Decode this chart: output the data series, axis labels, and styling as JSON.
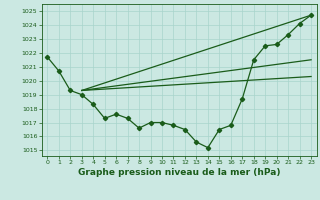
{
  "bg_color": "#cbe8e2",
  "line_color": "#1a5c1a",
  "grid_color": "#a8d4cc",
  "xlabel": "Graphe pression niveau de la mer (hPa)",
  "xlabel_fontsize": 6.5,
  "ylabel_ticks": [
    1015,
    1016,
    1017,
    1018,
    1019,
    1020,
    1021,
    1022,
    1023,
    1024,
    1025
  ],
  "xlim": [
    -0.5,
    23.5
  ],
  "ylim": [
    1014.6,
    1025.5
  ],
  "pressure_data": {
    "x": [
      0,
      1,
      2,
      3,
      4,
      5,
      6,
      7,
      8,
      9,
      10,
      11,
      12,
      13,
      14,
      15,
      16,
      17,
      18,
      19,
      20,
      21,
      22,
      23
    ],
    "y": [
      1021.7,
      1020.7,
      1019.3,
      1019.0,
      1018.3,
      1017.3,
      1017.6,
      1017.3,
      1016.6,
      1017.0,
      1017.0,
      1016.8,
      1016.5,
      1015.6,
      1015.2,
      1016.5,
      1016.8,
      1018.7,
      1021.5,
      1022.5,
      1022.6,
      1023.3,
      1024.1,
      1024.7
    ]
  },
  "straight_line1": {
    "x": [
      3,
      23
    ],
    "y": [
      1019.3,
      1024.7
    ]
  },
  "straight_line2": {
    "x": [
      3,
      23
    ],
    "y": [
      1019.3,
      1021.5
    ]
  },
  "straight_line3": {
    "x": [
      3,
      23
    ],
    "y": [
      1019.3,
      1020.3
    ]
  },
  "figsize": [
    3.2,
    2.0
  ],
  "dpi": 100
}
